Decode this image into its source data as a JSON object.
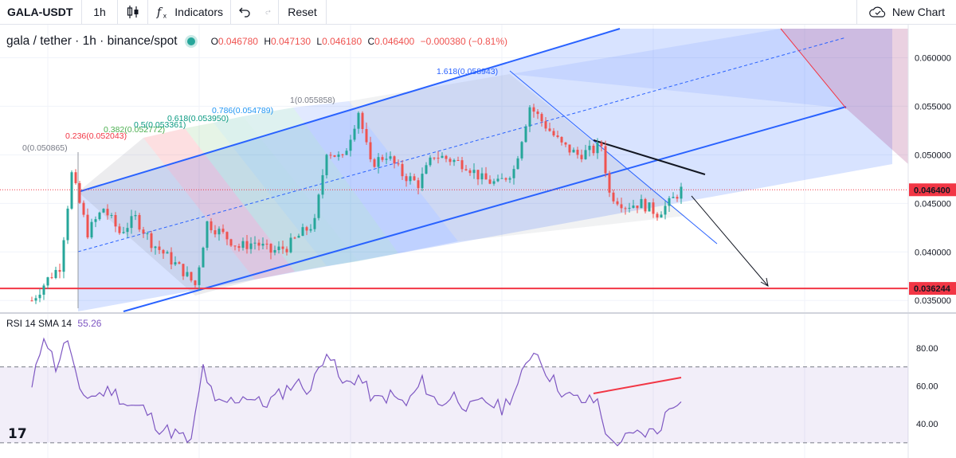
{
  "toolbar": {
    "symbol": "GALA-USDT",
    "interval": "1h",
    "chart_type_icon": "candles-icon",
    "indicators_label": "Indicators",
    "reset_label": "Reset",
    "new_chart_label": "New Chart"
  },
  "legend": {
    "title": "gala / tether · 1h · binance/spot",
    "o_label": "O",
    "o": "0.046780",
    "h_label": "H",
    "h": "0.047130",
    "l_label": "L",
    "l": "0.046180",
    "c_label": "C",
    "c": "0.046400",
    "change": "−0.000380 (−0.81%)"
  },
  "rsi_legend": {
    "label": "RSI 14 SMA 14",
    "value": "55.26"
  },
  "brand": {
    "logo": "17"
  },
  "colors": {
    "up": "#26a69a",
    "down": "#ef5350",
    "channel": "#2962ff",
    "rsi": "#7e57c2",
    "support": "#f23645",
    "price_label": "#f23645"
  },
  "chart_data": [
    {
      "type": "candlestick",
      "title": "gala / tether · 1h · binance/spot",
      "y_ticks": [
        "0.060000",
        "0.055000",
        "0.050000",
        "0.045000",
        "0.040000",
        "0.035000"
      ],
      "ylim": [
        0.0342,
        0.0634
      ],
      "current_price": "0.046400",
      "support_level": "0.036244",
      "ohlc_last": {
        "open": 0.04678,
        "high": 0.04713,
        "low": 0.04618,
        "close": 0.0464
      },
      "close_path": [
        [
          0,
          0.035
        ],
        [
          4,
          0.0372
        ],
        [
          7,
          0.0385
        ],
        [
          10,
          0.048
        ],
        [
          14,
          0.042
        ],
        [
          18,
          0.0445
        ],
        [
          22,
          0.042
        ],
        [
          26,
          0.0435
        ],
        [
          30,
          0.041
        ],
        [
          34,
          0.0395
        ],
        [
          38,
          0.038
        ],
        [
          41,
          0.0366
        ],
        [
          44,
          0.043
        ],
        [
          48,
          0.0418
        ],
        [
          52,
          0.0405
        ],
        [
          56,
          0.041
        ],
        [
          60,
          0.04
        ],
        [
          64,
          0.0405
        ],
        [
          68,
          0.042
        ],
        [
          71,
          0.043
        ],
        [
          74,
          0.0505
        ],
        [
          78,
          0.0495
        ],
        [
          82,
          0.0545
        ],
        [
          85,
          0.049
        ],
        [
          89,
          0.05
        ],
        [
          93,
          0.048
        ],
        [
          97,
          0.047
        ],
        [
          101,
          0.05
        ],
        [
          105,
          0.0495
        ],
        [
          109,
          0.049
        ],
        [
          113,
          0.0475
        ],
        [
          117,
          0.047
        ],
        [
          121,
          0.0485
        ],
        [
          125,
          0.055
        ],
        [
          129,
          0.053
        ],
        [
          133,
          0.051
        ],
        [
          137,
          0.05
        ],
        [
          141,
          0.0505
        ],
        [
          143,
          0.051
        ],
        [
          145,
          0.046
        ],
        [
          149,
          0.0448
        ],
        [
          153,
          0.045
        ],
        [
          157,
          0.044
        ],
        [
          160,
          0.045
        ],
        [
          163,
          0.0464
        ]
      ],
      "fibonacci_channel": {
        "levels": [
          "0(0.050865)",
          "0.236(0.052043)",
          "0.382(0.052772)",
          "0.5(0.053361)",
          "0.618(0.053950)",
          "0.786(0.054789)",
          "1(0.055858)",
          "1.618(0.058943)"
        ]
      }
    },
    {
      "type": "line",
      "title": "RSI 14 SMA 14",
      "y_ticks": [
        "80.00",
        "60.00",
        "40.00"
      ],
      "ylim": [
        22,
        95
      ],
      "bands": [
        30,
        70
      ],
      "current_value": "55.26",
      "values": [
        [
          0,
          58
        ],
        [
          3,
          88
        ],
        [
          6,
          70
        ],
        [
          9,
          85
        ],
        [
          12,
          55
        ],
        [
          16,
          55
        ],
        [
          20,
          58
        ],
        [
          24,
          50
        ],
        [
          28,
          48
        ],
        [
          32,
          38
        ],
        [
          36,
          35
        ],
        [
          40,
          30
        ],
        [
          43,
          70
        ],
        [
          46,
          50
        ],
        [
          50,
          52
        ],
        [
          54,
          55
        ],
        [
          58,
          50
        ],
        [
          62,
          55
        ],
        [
          66,
          62
        ],
        [
          70,
          58
        ],
        [
          74,
          80
        ],
        [
          78,
          60
        ],
        [
          82,
          65
        ],
        [
          86,
          52
        ],
        [
          90,
          55
        ],
        [
          94,
          50
        ],
        [
          98,
          62
        ],
        [
          102,
          50
        ],
        [
          106,
          55
        ],
        [
          110,
          48
        ],
        [
          114,
          52
        ],
        [
          118,
          48
        ],
        [
          122,
          60
        ],
        [
          126,
          80
        ],
        [
          130,
          65
        ],
        [
          134,
          55
        ],
        [
          138,
          52
        ],
        [
          142,
          52
        ],
        [
          145,
          30
        ],
        [
          149,
          32
        ],
        [
          153,
          35
        ],
        [
          157,
          36
        ],
        [
          160,
          48
        ],
        [
          163,
          55
        ]
      ]
    }
  ]
}
